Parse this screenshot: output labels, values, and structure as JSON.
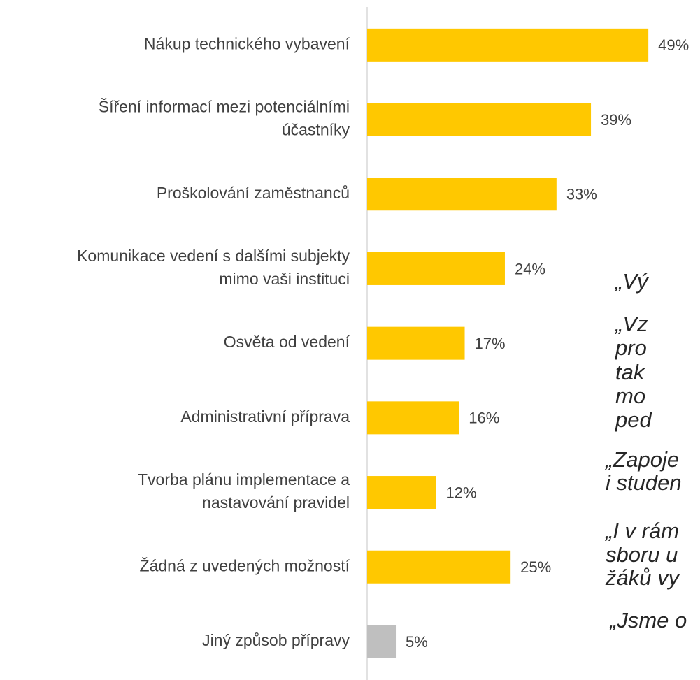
{
  "chart_data": {
    "type": "bar",
    "orientation": "horizontal",
    "categories": [
      [
        "Nákup technického vybavení"
      ],
      [
        "Šíření informací mezi potenciálními",
        "účastníky"
      ],
      [
        "Proškolování zaměstnanců"
      ],
      [
        "Komunikace vedení s dalšími subjekty",
        "mimo vaši instituci"
      ],
      [
        "Osvěta od vedení"
      ],
      [
        "Administrativní příprava"
      ],
      [
        "Tvorba plánu implementace a",
        "nastavování pravidel"
      ],
      [
        "Žádná z uvedených možností"
      ],
      [
        "Jiný způsob přípravy"
      ]
    ],
    "values": [
      49,
      39,
      33,
      24,
      17,
      16,
      12,
      25,
      5
    ],
    "value_labels": [
      "49%",
      "39%",
      "33%",
      "24%",
      "17%",
      "16%",
      "12%",
      "25%",
      "5%"
    ],
    "colors": [
      "#ffc800",
      "#ffc800",
      "#ffc800",
      "#ffc800",
      "#ffc800",
      "#ffc800",
      "#ffc800",
      "#ffc800",
      "#bfbfbf"
    ],
    "xlim": [
      0,
      58
    ],
    "annotations": [
      "„Vý",
      "„Vz",
      "pro",
      "tak",
      "mo",
      "ped",
      "„Zapoje",
      "i studen",
      "„I v rám",
      "sboru u",
      "žáků vy",
      "„Jsme o"
    ]
  }
}
